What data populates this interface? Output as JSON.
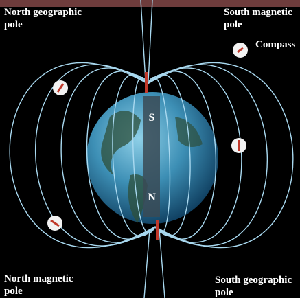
{
  "labels": {
    "north_geographic": [
      "North geographic",
      "pole"
    ],
    "south_magnetic": [
      "South magnetic",
      "pole"
    ],
    "compass": "Compass",
    "north_magnetic": [
      "North magnetic",
      "pole"
    ],
    "south_geographic": [
      "South geographic",
      "pole"
    ]
  },
  "magnet": {
    "top": "S",
    "bottom": "N"
  }
}
